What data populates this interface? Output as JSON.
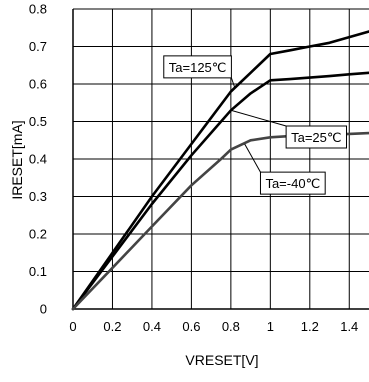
{
  "chart_data": {
    "type": "line",
    "xlabel": "VRESET[V]",
    "ylabel": "IRESET[mA]",
    "xlim": [
      0,
      1.5
    ],
    "ylim": [
      0,
      0.8
    ],
    "xticks": [
      "0",
      "0.2",
      "0.4",
      "0.6",
      "0.8",
      "1",
      "1.2",
      "1.4"
    ],
    "yticks": [
      "0",
      "0.1",
      "0.2",
      "0.3",
      "0.4",
      "0.5",
      "0.6",
      "0.7",
      "0.8"
    ],
    "grid": true,
    "colors": {
      "Ta=125℃": "#000000",
      "Ta=25℃": "#000000",
      "Ta=-40℃": "#444444",
      "grid": "#000000"
    },
    "series": [
      {
        "name": "Ta=125℃",
        "x": [
          0,
          0.2,
          0.4,
          0.6,
          0.8,
          0.9,
          1.0,
          1.1,
          1.2,
          1.3,
          1.4,
          1.5
        ],
        "y": [
          0,
          0.15,
          0.3,
          0.44,
          0.58,
          0.63,
          0.68,
          0.69,
          0.7,
          0.71,
          0.725,
          0.74
        ]
      },
      {
        "name": "Ta=25℃",
        "x": [
          0,
          0.2,
          0.4,
          0.6,
          0.8,
          0.9,
          1.0,
          1.1,
          1.2,
          1.3,
          1.4,
          1.5
        ],
        "y": [
          0,
          0.14,
          0.28,
          0.41,
          0.53,
          0.575,
          0.61,
          0.613,
          0.617,
          0.621,
          0.626,
          0.63
        ]
      },
      {
        "name": "Ta=-40℃",
        "x": [
          0,
          0.2,
          0.4,
          0.6,
          0.75,
          0.8,
          0.9,
          1.0,
          1.1,
          1.2,
          1.3,
          1.4,
          1.5
        ],
        "y": [
          0,
          0.11,
          0.22,
          0.33,
          0.4,
          0.425,
          0.45,
          0.458,
          0.461,
          0.463,
          0.465,
          0.467,
          0.469
        ]
      }
    ],
    "callouts": [
      {
        "label": "Ta=125℃",
        "series": "Ta=125℃",
        "anchor": [
          0.82,
          0.59
        ],
        "box": [
          0.46,
          0.675
        ]
      },
      {
        "label": "Ta=25℃",
        "series": "Ta=25℃",
        "anchor": [
          0.8,
          0.53
        ],
        "box": [
          1.08,
          0.488
        ]
      },
      {
        "label": "Ta=-40℃",
        "series": "Ta=-40℃",
        "anchor": [
          0.87,
          0.44
        ],
        "box": [
          0.95,
          0.365
        ]
      }
    ]
  }
}
